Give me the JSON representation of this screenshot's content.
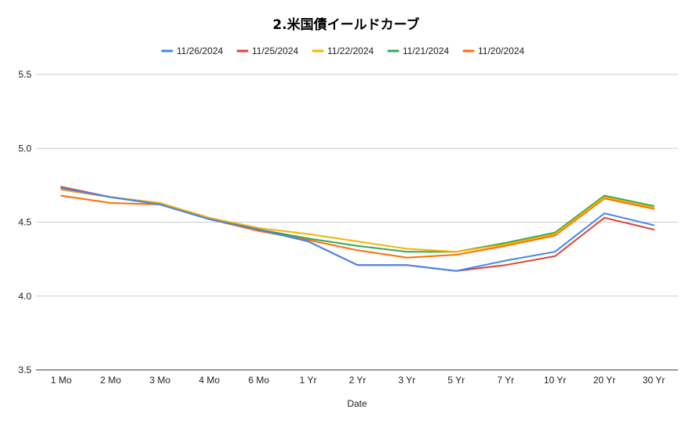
{
  "chart_data": {
    "type": "line",
    "title": "2.米国債イールドカーブ",
    "xlabel": "Date",
    "ylabel": "",
    "categories": [
      "1 Mo",
      "2 Mo",
      "3 Mo",
      "4 Mo",
      "6 Mo",
      "1 Yr",
      "2 Yr",
      "3 Yr",
      "5 Yr",
      "7 Yr",
      "10 Yr",
      "20 Yr",
      "30 Yr"
    ],
    "ylim": [
      3.5,
      5.5
    ],
    "yticks": [
      "3.5",
      "4.0",
      "4.5",
      "5.0",
      "5.5"
    ],
    "grid": true,
    "legend_position": "top",
    "series": [
      {
        "name": "11/26/2024",
        "color": "#4285f4",
        "values": [
          4.73,
          4.67,
          4.62,
          4.52,
          4.45,
          4.37,
          4.21,
          4.21,
          4.17,
          4.24,
          4.3,
          4.56,
          4.48
        ]
      },
      {
        "name": "11/25/2024",
        "color": "#db4437",
        "values": [
          4.74,
          4.67,
          4.62,
          4.52,
          4.45,
          4.37,
          4.21,
          4.21,
          4.17,
          4.21,
          4.27,
          4.53,
          4.45
        ]
      },
      {
        "name": "11/22/2024",
        "color": "#f4b400",
        "values": [
          4.72,
          4.67,
          4.63,
          4.53,
          4.46,
          4.42,
          4.37,
          4.32,
          4.3,
          4.35,
          4.42,
          4.67,
          4.6
        ]
      },
      {
        "name": "11/21/2024",
        "color": "#34a853",
        "values": [
          4.72,
          4.67,
          4.63,
          4.52,
          4.45,
          4.39,
          4.34,
          4.3,
          4.3,
          4.36,
          4.43,
          4.68,
          4.61
        ]
      },
      {
        "name": "11/20/2024",
        "color": "#ff6d01",
        "values": [
          4.68,
          4.63,
          4.62,
          4.52,
          4.44,
          4.38,
          4.31,
          4.26,
          4.28,
          4.34,
          4.41,
          4.66,
          4.59
        ]
      }
    ]
  }
}
